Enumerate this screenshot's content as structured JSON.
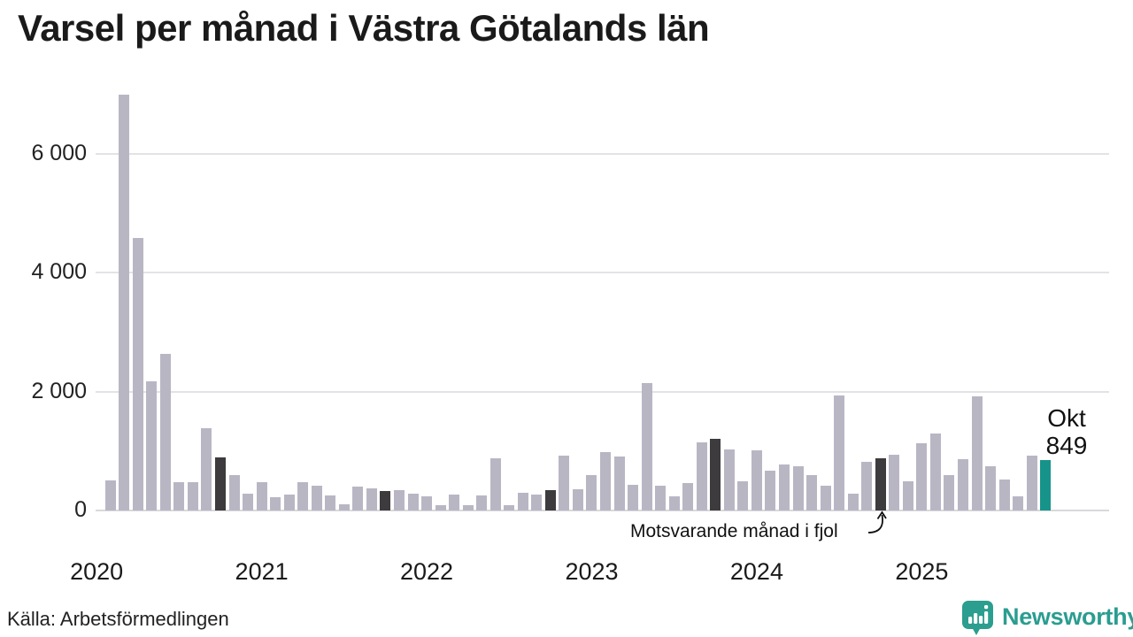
{
  "title": "Varsel per månad i Västra Götalands län",
  "source": "Källa: Arbetsförmedlingen",
  "annotation": {
    "text": "Motsvarande månad i fjol"
  },
  "current_label": {
    "month": "Okt",
    "value": "849"
  },
  "brand": {
    "name": "Newsworthy"
  },
  "colors": {
    "bar": "#b9b6c4",
    "bar_lastyear": "#3d3b3d",
    "bar_current": "#17948a",
    "grid": "#e3e3e7",
    "baseline": "#d9d9dc",
    "brand_teal": "#2b9e8f",
    "text": "#1a1a1a"
  },
  "chart_data": {
    "type": "bar",
    "title": "Varsel per månad i Västra Götalands län",
    "xlabel": "",
    "ylabel": "",
    "grid": true,
    "legend": false,
    "ylim": [
      0,
      7100
    ],
    "yticks": [
      {
        "value": 0,
        "label": "0"
      },
      {
        "value": 2000,
        "label": "2 000"
      },
      {
        "value": 4000,
        "label": "4 000"
      },
      {
        "value": 6000,
        "label": "6 000"
      }
    ],
    "year_labels": [
      {
        "label": "2020",
        "month_offset": -1
      },
      {
        "label": "2021",
        "month_offset": 11
      },
      {
        "label": "2022",
        "month_offset": 23
      },
      {
        "label": "2023",
        "month_offset": 35
      },
      {
        "label": "2024",
        "month_offset": 47
      },
      {
        "label": "2025",
        "month_offset": 59
      }
    ],
    "x_months": [
      "2020-02",
      "2020-03",
      "2020-04",
      "2020-05",
      "2020-06",
      "2020-07",
      "2020-08",
      "2020-09",
      "2020-10",
      "2020-11",
      "2020-12",
      "2021-01",
      "2021-02",
      "2021-03",
      "2021-04",
      "2021-05",
      "2021-06",
      "2021-07",
      "2021-08",
      "2021-09",
      "2021-10",
      "2021-11",
      "2021-12",
      "2022-01",
      "2022-02",
      "2022-03",
      "2022-04",
      "2022-05",
      "2022-06",
      "2022-07",
      "2022-08",
      "2022-09",
      "2022-10",
      "2022-11",
      "2022-12",
      "2023-01",
      "2023-02",
      "2023-03",
      "2023-04",
      "2023-05",
      "2023-06",
      "2023-07",
      "2023-08",
      "2023-09",
      "2023-10",
      "2023-11",
      "2023-12",
      "2024-01",
      "2024-02",
      "2024-03",
      "2024-04",
      "2024-05",
      "2024-06",
      "2024-07",
      "2024-08",
      "2024-09",
      "2024-10",
      "2024-11",
      "2024-12",
      "2025-01",
      "2025-02",
      "2025-03",
      "2025-04",
      "2025-05",
      "2025-06",
      "2025-07",
      "2025-08",
      "2025-09",
      "2025-10"
    ],
    "values": [
      500,
      7000,
      4590,
      2170,
      2640,
      480,
      470,
      1380,
      890,
      600,
      290,
      470,
      220,
      270,
      470,
      420,
      250,
      110,
      400,
      370,
      330,
      340,
      285,
      240,
      85,
      270,
      85,
      260,
      880,
      90,
      295,
      265,
      345,
      930,
      350,
      590,
      990,
      910,
      430,
      2140,
      420,
      235,
      460,
      1150,
      1200,
      1020,
      490,
      1010,
      670,
      780,
      740,
      600,
      420,
      1930,
      290,
      815,
      875,
      940,
      485,
      1130,
      1290,
      590,
      870,
      1920,
      750,
      520,
      240,
      930,
      849
    ],
    "lastyear_month_indices": [
      8,
      20,
      32,
      44,
      56
    ],
    "current_index": 68,
    "current_value_label": "Okt 849"
  }
}
